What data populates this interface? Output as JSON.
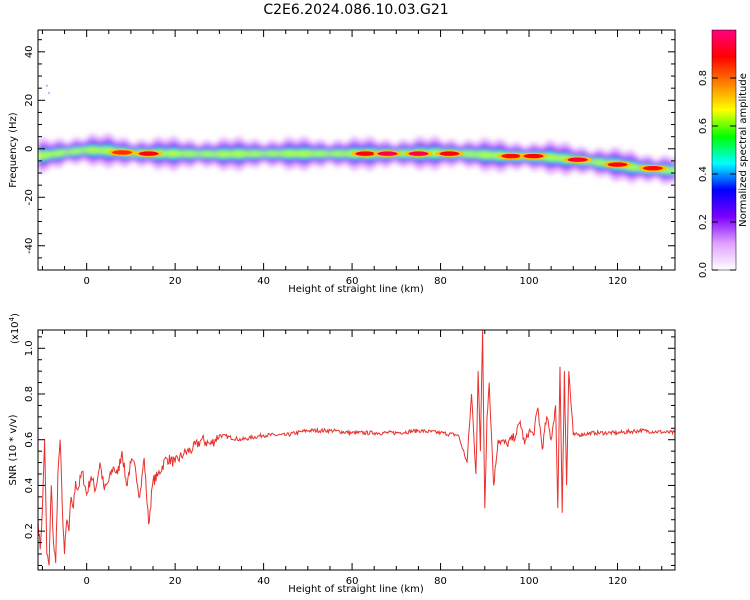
{
  "title": "C2E6.2024.086.10.03.G21",
  "chart_data": [
    {
      "type": "heatmap",
      "xlabel": "Height of straight line (km)",
      "ylabel": "Frequency (Hz)",
      "xlim": [
        -11,
        133
      ],
      "ylim": [
        -50,
        49
      ],
      "xticks": [
        0,
        20,
        40,
        60,
        80,
        100,
        120
      ],
      "xtick_labels": [
        "0",
        "20",
        "40",
        "60",
        "80",
        "100",
        "120"
      ],
      "yticks": [
        -40,
        -20,
        0,
        20,
        40
      ],
      "ytick_labels": [
        "-40",
        "-20",
        "0",
        "20",
        "40"
      ],
      "colorbar": {
        "label": "Normalized spectral amplitude",
        "range": [
          0,
          1
        ],
        "ticks": [
          0.0,
          0.2,
          0.4,
          0.6,
          0.8
        ],
        "tick_labels": [
          "0.0",
          "0.2",
          "0.4",
          "0.6",
          "0.8"
        ],
        "colors": [
          "#ffffff",
          "#e0a0ff",
          "#7a00ff",
          "#0000ff",
          "#00ffff",
          "#00ff00",
          "#ffff00",
          "#ff8000",
          "#ff0000",
          "#ff0080"
        ]
      },
      "ridge": {
        "x": [
          -11,
          -5,
          0,
          5,
          10,
          20,
          30,
          40,
          50,
          60,
          70,
          80,
          85,
          90,
          95,
          100,
          105,
          110,
          115,
          120,
          125,
          133
        ],
        "y": [
          -3,
          -1.5,
          -0.5,
          -0.8,
          -1.8,
          -2,
          -2.2,
          -2,
          -2,
          -2,
          -2,
          -1.8,
          -2,
          -2.5,
          -3,
          -3.2,
          -3.5,
          -4.5,
          -5.5,
          -6.5,
          -8,
          -9
        ]
      },
      "hot_spots": [
        {
          "x": 8,
          "y": -1.5,
          "amp": 0.85
        },
        {
          "x": 14,
          "y": -2,
          "amp": 0.9
        },
        {
          "x": 63,
          "y": -2,
          "amp": 0.9
        },
        {
          "x": 68,
          "y": -2,
          "amp": 0.95
        },
        {
          "x": 75,
          "y": -2,
          "amp": 0.95
        },
        {
          "x": 82,
          "y": -2,
          "amp": 0.9
        },
        {
          "x": 96,
          "y": -3,
          "amp": 0.88
        },
        {
          "x": 101,
          "y": -3,
          "amp": 0.9
        },
        {
          "x": 111,
          "y": -4.5,
          "amp": 0.92
        },
        {
          "x": 120,
          "y": -6.5,
          "amp": 0.9
        },
        {
          "x": 128,
          "y": -8,
          "amp": 0.88
        }
      ],
      "outliers": [
        {
          "x": -9,
          "y": 26
        },
        {
          "x": -8.5,
          "y": 23
        }
      ]
    },
    {
      "type": "line",
      "xlabel": "Height of straight line (km)",
      "ylabel": "SNR (10 * v/v)",
      "scale_label": "(x10",
      "scale_exp": "4",
      "scale_close": ")",
      "xlim": [
        -11,
        133
      ],
      "ylim": [
        0.03,
        1.08
      ],
      "xticks": [
        0,
        20,
        40,
        60,
        80,
        100,
        120
      ],
      "xtick_labels": [
        "0",
        "20",
        "40",
        "60",
        "80",
        "100",
        "120"
      ],
      "yticks": [
        0.2,
        0.4,
        0.6,
        0.8,
        1.0
      ],
      "ytick_labels": [
        "0.2",
        "0.4",
        "0.6",
        "0.8",
        "1.0"
      ],
      "color": "#e8322e",
      "series": [
        {
          "x": [
            -11,
            -10.5,
            -10,
            -9.5,
            -9,
            -8.5,
            -8,
            -7.5,
            -7,
            -6.5,
            -6,
            -5.5,
            -5,
            -4.5,
            -4,
            -3.5,
            -3,
            -2.5,
            -2,
            -1,
            0,
            1,
            2,
            3,
            4,
            5,
            6,
            7,
            8,
            9,
            10,
            11,
            12,
            13,
            14,
            15,
            16,
            18,
            20,
            22,
            24,
            26,
            28,
            30,
            35,
            40,
            45,
            50,
            55,
            60,
            65,
            70,
            75,
            80,
            84,
            86,
            87,
            88,
            88.5,
            89,
            89.5,
            90,
            90.5,
            91,
            92,
            93,
            95,
            97,
            98,
            99,
            100,
            101,
            102,
            103,
            104,
            105,
            106,
            106.5,
            107,
            107.5,
            108,
            108.5,
            109,
            110,
            115,
            120,
            125,
            133
          ],
          "y": [
            0.25,
            0.12,
            0.3,
            0.6,
            0.1,
            0.05,
            0.4,
            0.15,
            0.06,
            0.45,
            0.6,
            0.3,
            0.1,
            0.25,
            0.2,
            0.35,
            0.3,
            0.42,
            0.38,
            0.46,
            0.36,
            0.44,
            0.38,
            0.5,
            0.38,
            0.42,
            0.48,
            0.45,
            0.55,
            0.4,
            0.5,
            0.48,
            0.35,
            0.52,
            0.23,
            0.42,
            0.44,
            0.52,
            0.5,
            0.54,
            0.56,
            0.6,
            0.58,
            0.62,
            0.6,
            0.62,
            0.62,
            0.64,
            0.64,
            0.63,
            0.63,
            0.63,
            0.64,
            0.63,
            0.62,
            0.5,
            0.8,
            0.45,
            0.9,
            0.55,
            1.08,
            0.3,
            0.7,
            0.85,
            0.4,
            0.6,
            0.58,
            0.62,
            0.68,
            0.58,
            0.64,
            0.62,
            0.74,
            0.56,
            0.7,
            0.6,
            0.75,
            0.3,
            0.92,
            0.28,
            0.9,
            0.4,
            0.9,
            0.62,
            0.63,
            0.63,
            0.64,
            0.63
          ]
        }
      ]
    }
  ]
}
